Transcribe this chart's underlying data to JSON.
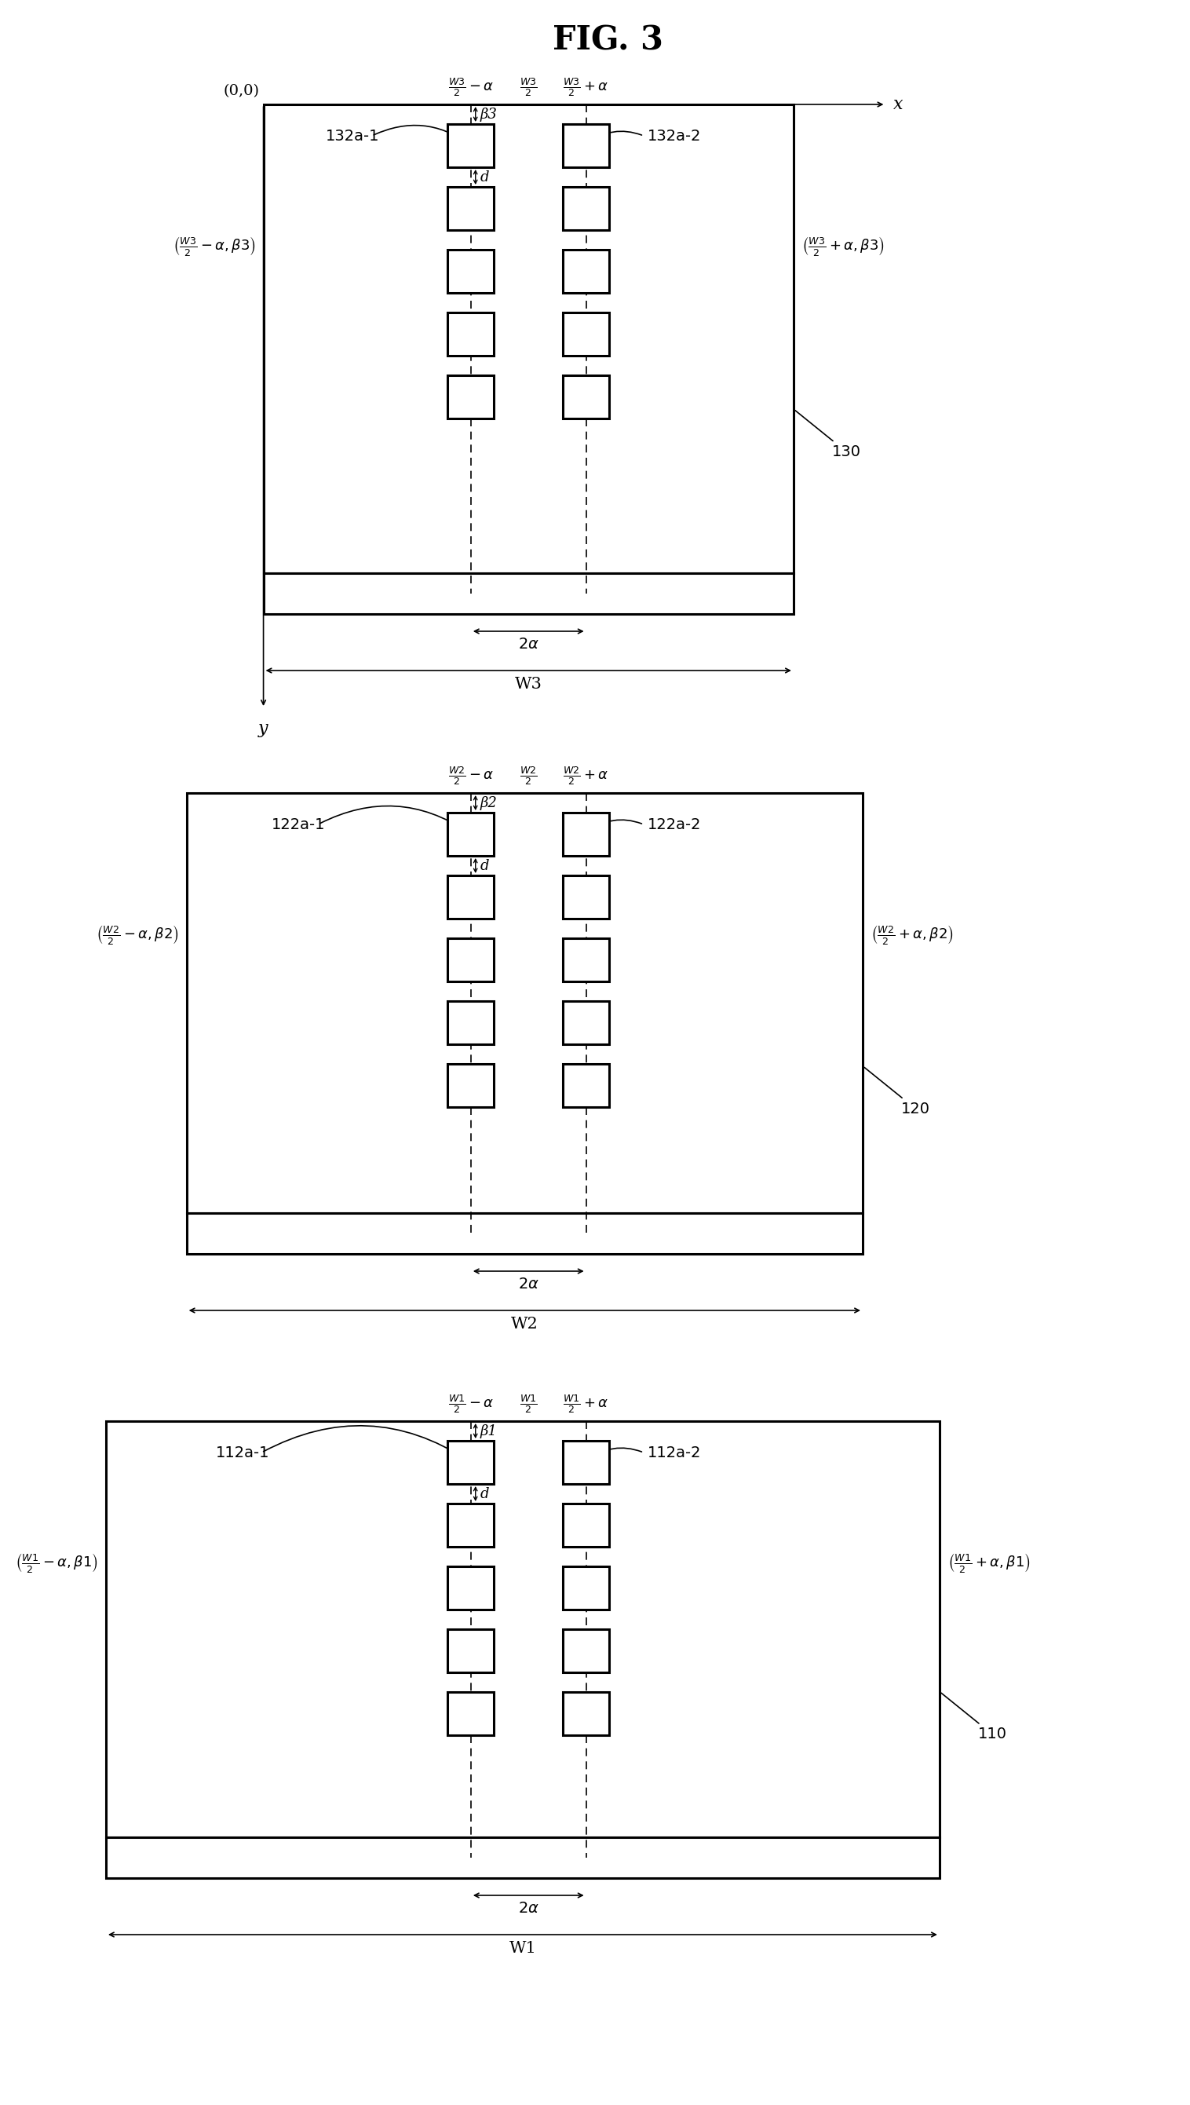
{
  "title": "FIG. 3",
  "fig_width": 15.16,
  "fig_height": 26.81,
  "diagrams": [
    {
      "chip_label": "130",
      "width_label": "W3",
      "left_col_label": "132a-1",
      "right_col_label": "132a-2",
      "beta_label": "β3",
      "coord_left_tex": "$\\left(\\frac{W3}{2}-\\alpha,\\beta3\\right)$",
      "coord_right_tex": "$\\left(\\frac{W3}{2}+\\alpha,\\beta3\\right)$",
      "x_label_left": "$\\frac{W3}{2}-\\alpha$",
      "x_label_mid": "$\\frac{W3}{2}$",
      "x_label_right": "$\\frac{W3}{2}+\\alpha$",
      "show_origin": true,
      "num_pads": 5
    },
    {
      "chip_label": "120",
      "width_label": "W2",
      "left_col_label": "122a-1",
      "right_col_label": "122a-2",
      "beta_label": "β2",
      "coord_left_tex": "$\\left(\\frac{W2}{2}-\\alpha,\\beta2\\right)$",
      "coord_right_tex": "$\\left(\\frac{W2}{2}+\\alpha,\\beta2\\right)$",
      "x_label_left": "$\\frac{W2}{2}-\\alpha$",
      "x_label_mid": "$\\frac{W2}{2}$",
      "x_label_right": "$\\frac{W2}{2}+\\alpha$",
      "show_origin": false,
      "num_pads": 5
    },
    {
      "chip_label": "110",
      "width_label": "W1",
      "left_col_label": "112a-1",
      "right_col_label": "112a-2",
      "beta_label": "β1",
      "coord_left_tex": "$\\left(\\frac{W1}{2}-\\alpha,\\beta1\\right)$",
      "coord_right_tex": "$\\left(\\frac{W1}{2}+\\alpha,\\beta1\\right)$",
      "x_label_left": "$\\frac{W1}{2}-\\alpha$",
      "x_label_mid": "$\\frac{W1}{2}$",
      "x_label_right": "$\\frac{W1}{2}+\\alpha$",
      "show_origin": false,
      "num_pads": 5
    }
  ]
}
